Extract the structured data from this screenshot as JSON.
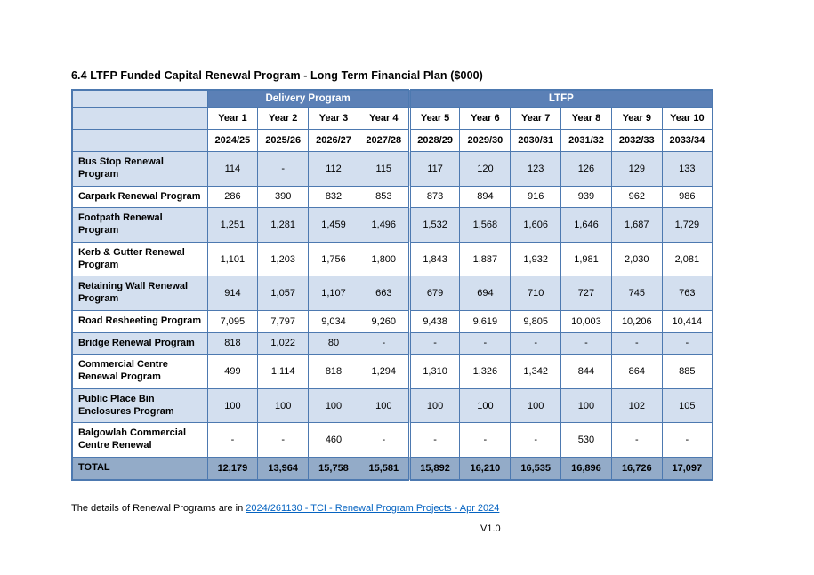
{
  "page": {
    "title": "6.4 LTFP Funded Capital Renewal Program - Long Term Financial Plan ($000)",
    "footer": {
      "prefix": "The details of Renewal Programs are in ",
      "link_text": "2024/261130 - TCI - Renewal Program Projects - Apr 2024"
    },
    "version": "V1.0"
  },
  "colors": {
    "header_bg": "#5b80b6",
    "header_text": "#ffffff",
    "band_bg": "#d3dfef",
    "label_col_bg": "#d3dfef",
    "total_bg": "#93abc8",
    "border": "#4d79b0",
    "link": "#0563c1"
  },
  "chart_data": {
    "type": "table",
    "group_headers": [
      {
        "label": "Delivery Program",
        "span": 4
      },
      {
        "label": "LTFP",
        "span": 6
      }
    ],
    "year_headers": [
      "Year 1",
      "Year 2",
      "Year 3",
      "Year 4",
      "Year 5",
      "Year 6",
      "Year 7",
      "Year 8",
      "Year 9",
      "Year 10"
    ],
    "fy_headers": [
      "2024/25",
      "2025/26",
      "2026/27",
      "2027/28",
      "2028/29",
      "2029/30",
      "2030/31",
      "2031/32",
      "2032/33",
      "2033/34"
    ],
    "rows": [
      {
        "label": "Bus Stop Renewal Program",
        "values": [
          "114",
          "-",
          "112",
          "115",
          "117",
          "120",
          "123",
          "126",
          "129",
          "133"
        ]
      },
      {
        "label": "Carpark Renewal Program",
        "values": [
          "286",
          "390",
          "832",
          "853",
          "873",
          "894",
          "916",
          "939",
          "962",
          "986"
        ]
      },
      {
        "label": "Footpath Renewal Program",
        "values": [
          "1,251",
          "1,281",
          "1,459",
          "1,496",
          "1,532",
          "1,568",
          "1,606",
          "1,646",
          "1,687",
          "1,729"
        ]
      },
      {
        "label": "Kerb & Gutter Renewal Program",
        "values": [
          "1,101",
          "1,203",
          "1,756",
          "1,800",
          "1,843",
          "1,887",
          "1,932",
          "1,981",
          "2,030",
          "2,081"
        ]
      },
      {
        "label": "Retaining Wall Renewal Program",
        "values": [
          "914",
          "1,057",
          "1,107",
          "663",
          "679",
          "694",
          "710",
          "727",
          "745",
          "763"
        ]
      },
      {
        "label": "Road Resheeting Program",
        "values": [
          "7,095",
          "7,797",
          "9,034",
          "9,260",
          "9,438",
          "9,619",
          "9,805",
          "10,003",
          "10,206",
          "10,414"
        ]
      },
      {
        "label": "Bridge Renewal Program",
        "values": [
          "818",
          "1,022",
          "80",
          "-",
          "-",
          "-",
          "-",
          "-",
          "-",
          "-"
        ]
      },
      {
        "label": "Commercial Centre Renewal Program",
        "values": [
          "499",
          "1,114",
          "818",
          "1,294",
          "1,310",
          "1,326",
          "1,342",
          "844",
          "864",
          "885"
        ]
      },
      {
        "label": "Public Place Bin Enclosures Program",
        "values": [
          "100",
          "100",
          "100",
          "100",
          "100",
          "100",
          "100",
          "100",
          "102",
          "105"
        ]
      },
      {
        "label": "Balgowlah Commercial Centre Renewal",
        "values": [
          "-",
          "-",
          "460",
          "-",
          "-",
          "-",
          "-",
          "530",
          "-",
          "-"
        ]
      }
    ],
    "total": {
      "label": "TOTAL",
      "values": [
        "12,179",
        "13,964",
        "15,758",
        "15,581",
        "15,892",
        "16,210",
        "16,535",
        "16,896",
        "16,726",
        "17,097"
      ]
    }
  }
}
